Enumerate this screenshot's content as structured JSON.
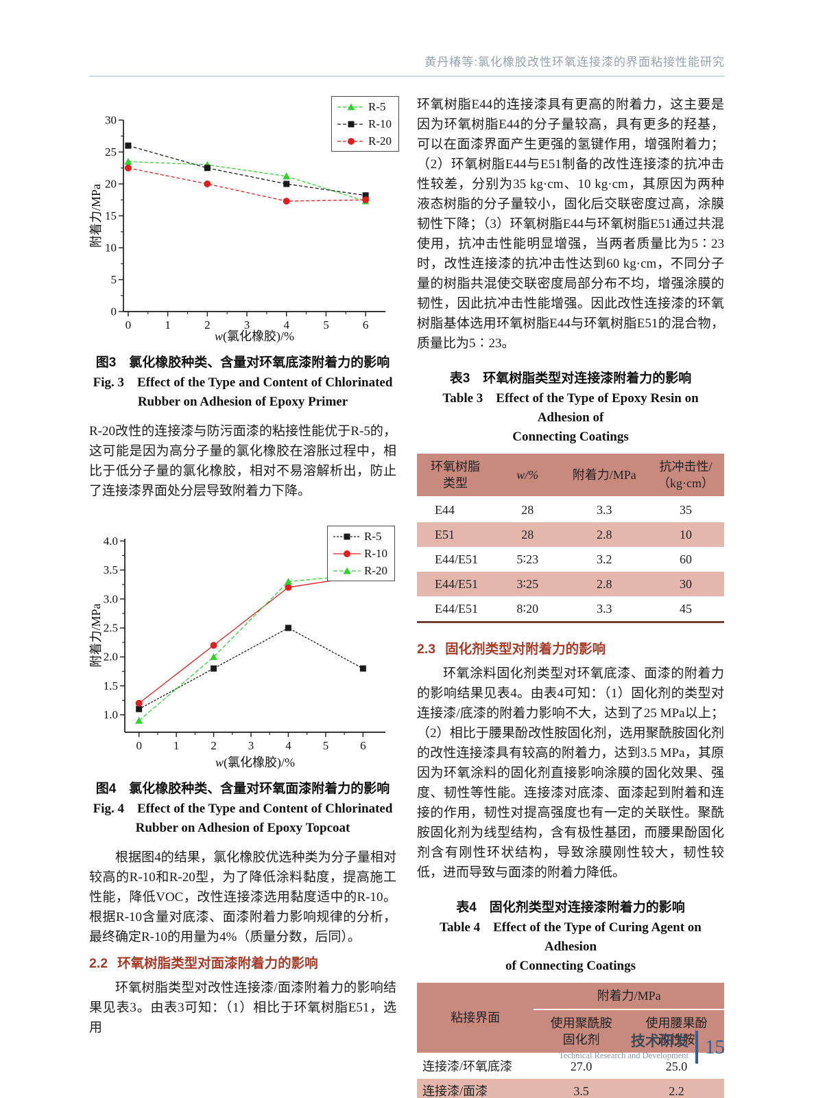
{
  "page": {
    "header": "黄丹椿等:氯化橡胶改性环氧连接漆的界面粘接性能研究",
    "footer": {
      "zh": "技术研发",
      "en": "Technical Research and Development",
      "page_number": "15"
    }
  },
  "left_column": {
    "para_r20": "R-20改性的连接漆与防污面漆的粘接性能优于R-5的，这可能是因为高分子量的氯化橡胶在溶胀过程中，相比于低分子量的氯化橡胶，相对不易溶解析出，防止了连接漆界面处分层导致附着力下降。",
    "para_fig4": "根据图4的结果，氯化橡胶优选种类为分子量相对较高的R-10和R-20型，为了降低涂料黏度，提高施工性能，降低VOC，改性连接漆选用黏度适中的R-10。根据R-10含量对底漆、面漆附着力影响规律的分析，最终确定R-10的用量为4%（质量分数，后同）。",
    "section22": {
      "num": "2.2",
      "title": "环氧树脂类型对面漆附着力的影响"
    },
    "para_sec22": "环氧树脂类型对改性连接漆/面漆附着力的影响结果见表3。由表3可知：（1）相比于环氧树脂E51，选用"
  },
  "right_column": {
    "para_e44": "环氧树脂E44的连接漆具有更高的附着力，这主要是因为环氧树脂E44的分子量较高，具有更多的羟基，可以在面漆界面产生更强的氢键作用，增强附着力；（2）环氧树脂E44与E51制备的改性连接漆的抗冲击性较差，分别为35 kg·cm、10 kg·cm，其原因为两种液态树脂的分子量较小，固化后交联密度过高，涂膜韧性下降；（3）环氧树脂E44与环氧树脂E51通过共混使用，抗冲击性能明显增强，当两者质量比为5∶23时，改性连接漆的抗冲击性达到60 kg·cm，不同分子量的树脂共混使交联密度局部分布不均，增强涂膜的韧性，因此抗冲击性能增强。因此改性连接漆的环氧树脂基体选用环氧树脂E44与环氧树脂E51的混合物，质量比为5∶23。",
    "table3": {
      "caption_zh": "表3　环氧树脂类型对连接漆附着力的影响",
      "caption_en1": "Table 3　Effect of the Type of Epoxy Resin on Adhesion of",
      "caption_en2": "Connecting Coatings",
      "headers": [
        "环氧树脂\n类型",
        "w/%",
        "附着力/MPa",
        "抗冲击性/\n（kg·cm）"
      ],
      "rows": [
        [
          "E44",
          "28",
          "3.3",
          "35"
        ],
        [
          "E51",
          "28",
          "2.8",
          "10"
        ],
        [
          "E44/E51",
          "5∶23",
          "3.2",
          "60"
        ],
        [
          "E44/E51",
          "3∶25",
          "2.8",
          "30"
        ],
        [
          "E44/E51",
          "8∶20",
          "3.3",
          "45"
        ]
      ]
    },
    "section23": {
      "num": "2.3",
      "title": "固化剂类型对附着力的影响"
    },
    "para_sec23": "环氧涂料固化剂类型对环氧底漆、面漆的附着力的影响结果见表4。由表4可知：（1）固化剂的类型对连接漆/底漆的附着力影响不大，达到了25 MPa以上；（2）相比于腰果酚改性胺固化剂，选用聚酰胺固化剂的改性连接漆具有较高的附着力，达到3.5 MPa，其原因为环氧涂料的固化剂直接影响涂膜的固化效果、强度、韧性等性能。连接漆对底漆、面漆起到附着和连接的作用，韧性对提高强度也有一定的关联性。聚酰胺固化剂为线型结构，含有极性基团，而腰果酚固化剂含有刚性环状结构，导致涂膜刚性较大，韧性较低，进而导致与面漆的附着力降低。",
    "table4": {
      "caption_zh": "表4　固化剂类型对连接漆附着力的影响",
      "caption_en1": "Table 4　Effect of the Type of Curing Agent on Adhesion",
      "caption_en2": "of Connecting Coatings",
      "header_col1": "粘接界面",
      "header_span": "附着力/MPa",
      "header_sub1": "使用聚酰胺\n固化剂",
      "header_sub2": "使用腰果酚\n改性胺",
      "rows": [
        [
          "连接漆/环氧底漆",
          "27.0",
          "25.0"
        ],
        [
          "连接漆/面漆",
          "3.5",
          "2.2"
        ]
      ]
    }
  },
  "chart_data": [
    {
      "id": "fig3",
      "type": "line",
      "caption_zh": "图3　氯化橡胶种类、含量对环氧底漆附着力的影响",
      "caption_en1": "Fig. 3　Effect of the Type and Content of Chlorinated",
      "caption_en2": "Rubber on Adhesion of Epoxy Primer",
      "xlabel": "w(氯化橡胶)/%",
      "ylabel": "附着力/MPa",
      "x": [
        0,
        2,
        4,
        6
      ],
      "xlim": [
        -0.12,
        6.5
      ],
      "ylim": [
        0,
        30
      ],
      "xticks": [
        "0",
        "1",
        "2",
        "3",
        "4",
        "5",
        "6"
      ],
      "yticks": [
        "0",
        "5",
        "10",
        "15",
        "20",
        "25",
        "30"
      ],
      "legend_position": "top-right",
      "grid": false,
      "series": [
        {
          "name": "R-5",
          "color": "#2ed32e",
          "marker": "triangle",
          "dash": "5 3",
          "values": [
            23.5,
            23.0,
            21.2,
            17.3
          ]
        },
        {
          "name": "R-10",
          "color": "#1a1a1a",
          "marker": "square",
          "dash": "5 3",
          "values": [
            26.0,
            22.5,
            20.0,
            18.2
          ]
        },
        {
          "name": "R-20",
          "color": "#e01f1f",
          "marker": "circle",
          "dash": "5 3",
          "values": [
            22.5,
            20.0,
            17.3,
            17.5
          ]
        }
      ]
    },
    {
      "id": "fig4",
      "type": "line",
      "caption_zh": "图4　氯化橡胶种类、含量对环氧面漆附着力的影响",
      "caption_en1": "Fig. 4　Effect of the Type and Content of Chlorinated",
      "caption_en2": "Rubber on Adhesion of Epoxy Topcoat",
      "xlabel": "w(氯化橡胶)/%",
      "ylabel": "附着力/MPa",
      "x": [
        0,
        2,
        4,
        6
      ],
      "xlim": [
        -0.38,
        6.6
      ],
      "ylim": [
        0.7,
        4.04
      ],
      "xticks": [
        "0",
        "1",
        "2",
        "3",
        "4",
        "5",
        "6"
      ],
      "yticks": [
        "1.0",
        "1.5",
        "2.0",
        "2.5",
        "3.0",
        "3.5",
        "4.0"
      ],
      "legend_position": "top-right",
      "grid": false,
      "series": [
        {
          "name": "R-5",
          "color": "#1a1a1a",
          "marker": "square",
          "dash": "3 2",
          "values": [
            1.1,
            1.8,
            2.5,
            1.8
          ]
        },
        {
          "name": "R-10",
          "color": "#e01f1f",
          "marker": "circle",
          "dash": "",
          "values": [
            1.2,
            2.2,
            3.2,
            3.4
          ]
        },
        {
          "name": "R-20",
          "color": "#2ed32e",
          "marker": "triangle",
          "dash": "6 3",
          "values": [
            0.9,
            2.0,
            3.3,
            3.42
          ]
        }
      ]
    }
  ]
}
